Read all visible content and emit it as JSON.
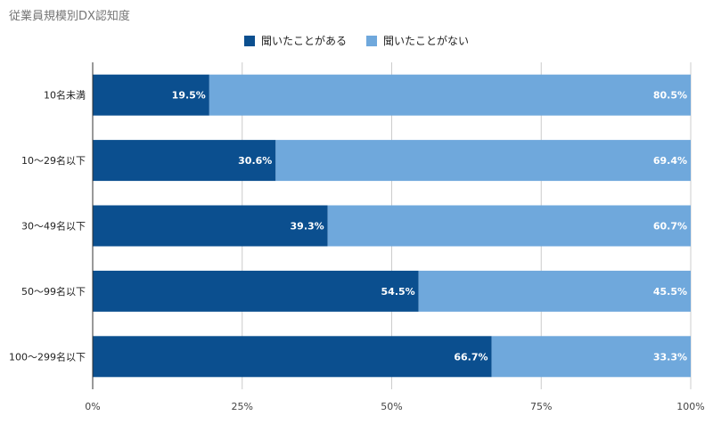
{
  "chart_data": {
    "type": "bar",
    "orientation": "horizontal",
    "stacked": true,
    "title": "従業員規模別DX認知度",
    "categories": [
      "10名未満",
      "10〜29名以下",
      "30〜49名以下",
      "50〜99名以下",
      "100〜299名以下"
    ],
    "series": [
      {
        "name": "聞いたことがある",
        "color": "#0b4f8f",
        "values": [
          19.5,
          30.6,
          39.3,
          54.5,
          66.7
        ],
        "labels": [
          "19.5%",
          "30.6%",
          "39.3%",
          "54.5%",
          "66.7%"
        ]
      },
      {
        "name": "聞いたことがない",
        "color": "#6fa8dc",
        "values": [
          80.5,
          69.4,
          60.7,
          45.5,
          33.3
        ],
        "labels": [
          "80.5%",
          "69.4%",
          "60.7%",
          "45.5%",
          "33.3%"
        ]
      }
    ],
    "xlim": [
      0,
      100
    ],
    "xticks": [
      "0%",
      "25%",
      "50%",
      "75%",
      "100%"
    ],
    "grid": true,
    "legend_position": "top"
  }
}
